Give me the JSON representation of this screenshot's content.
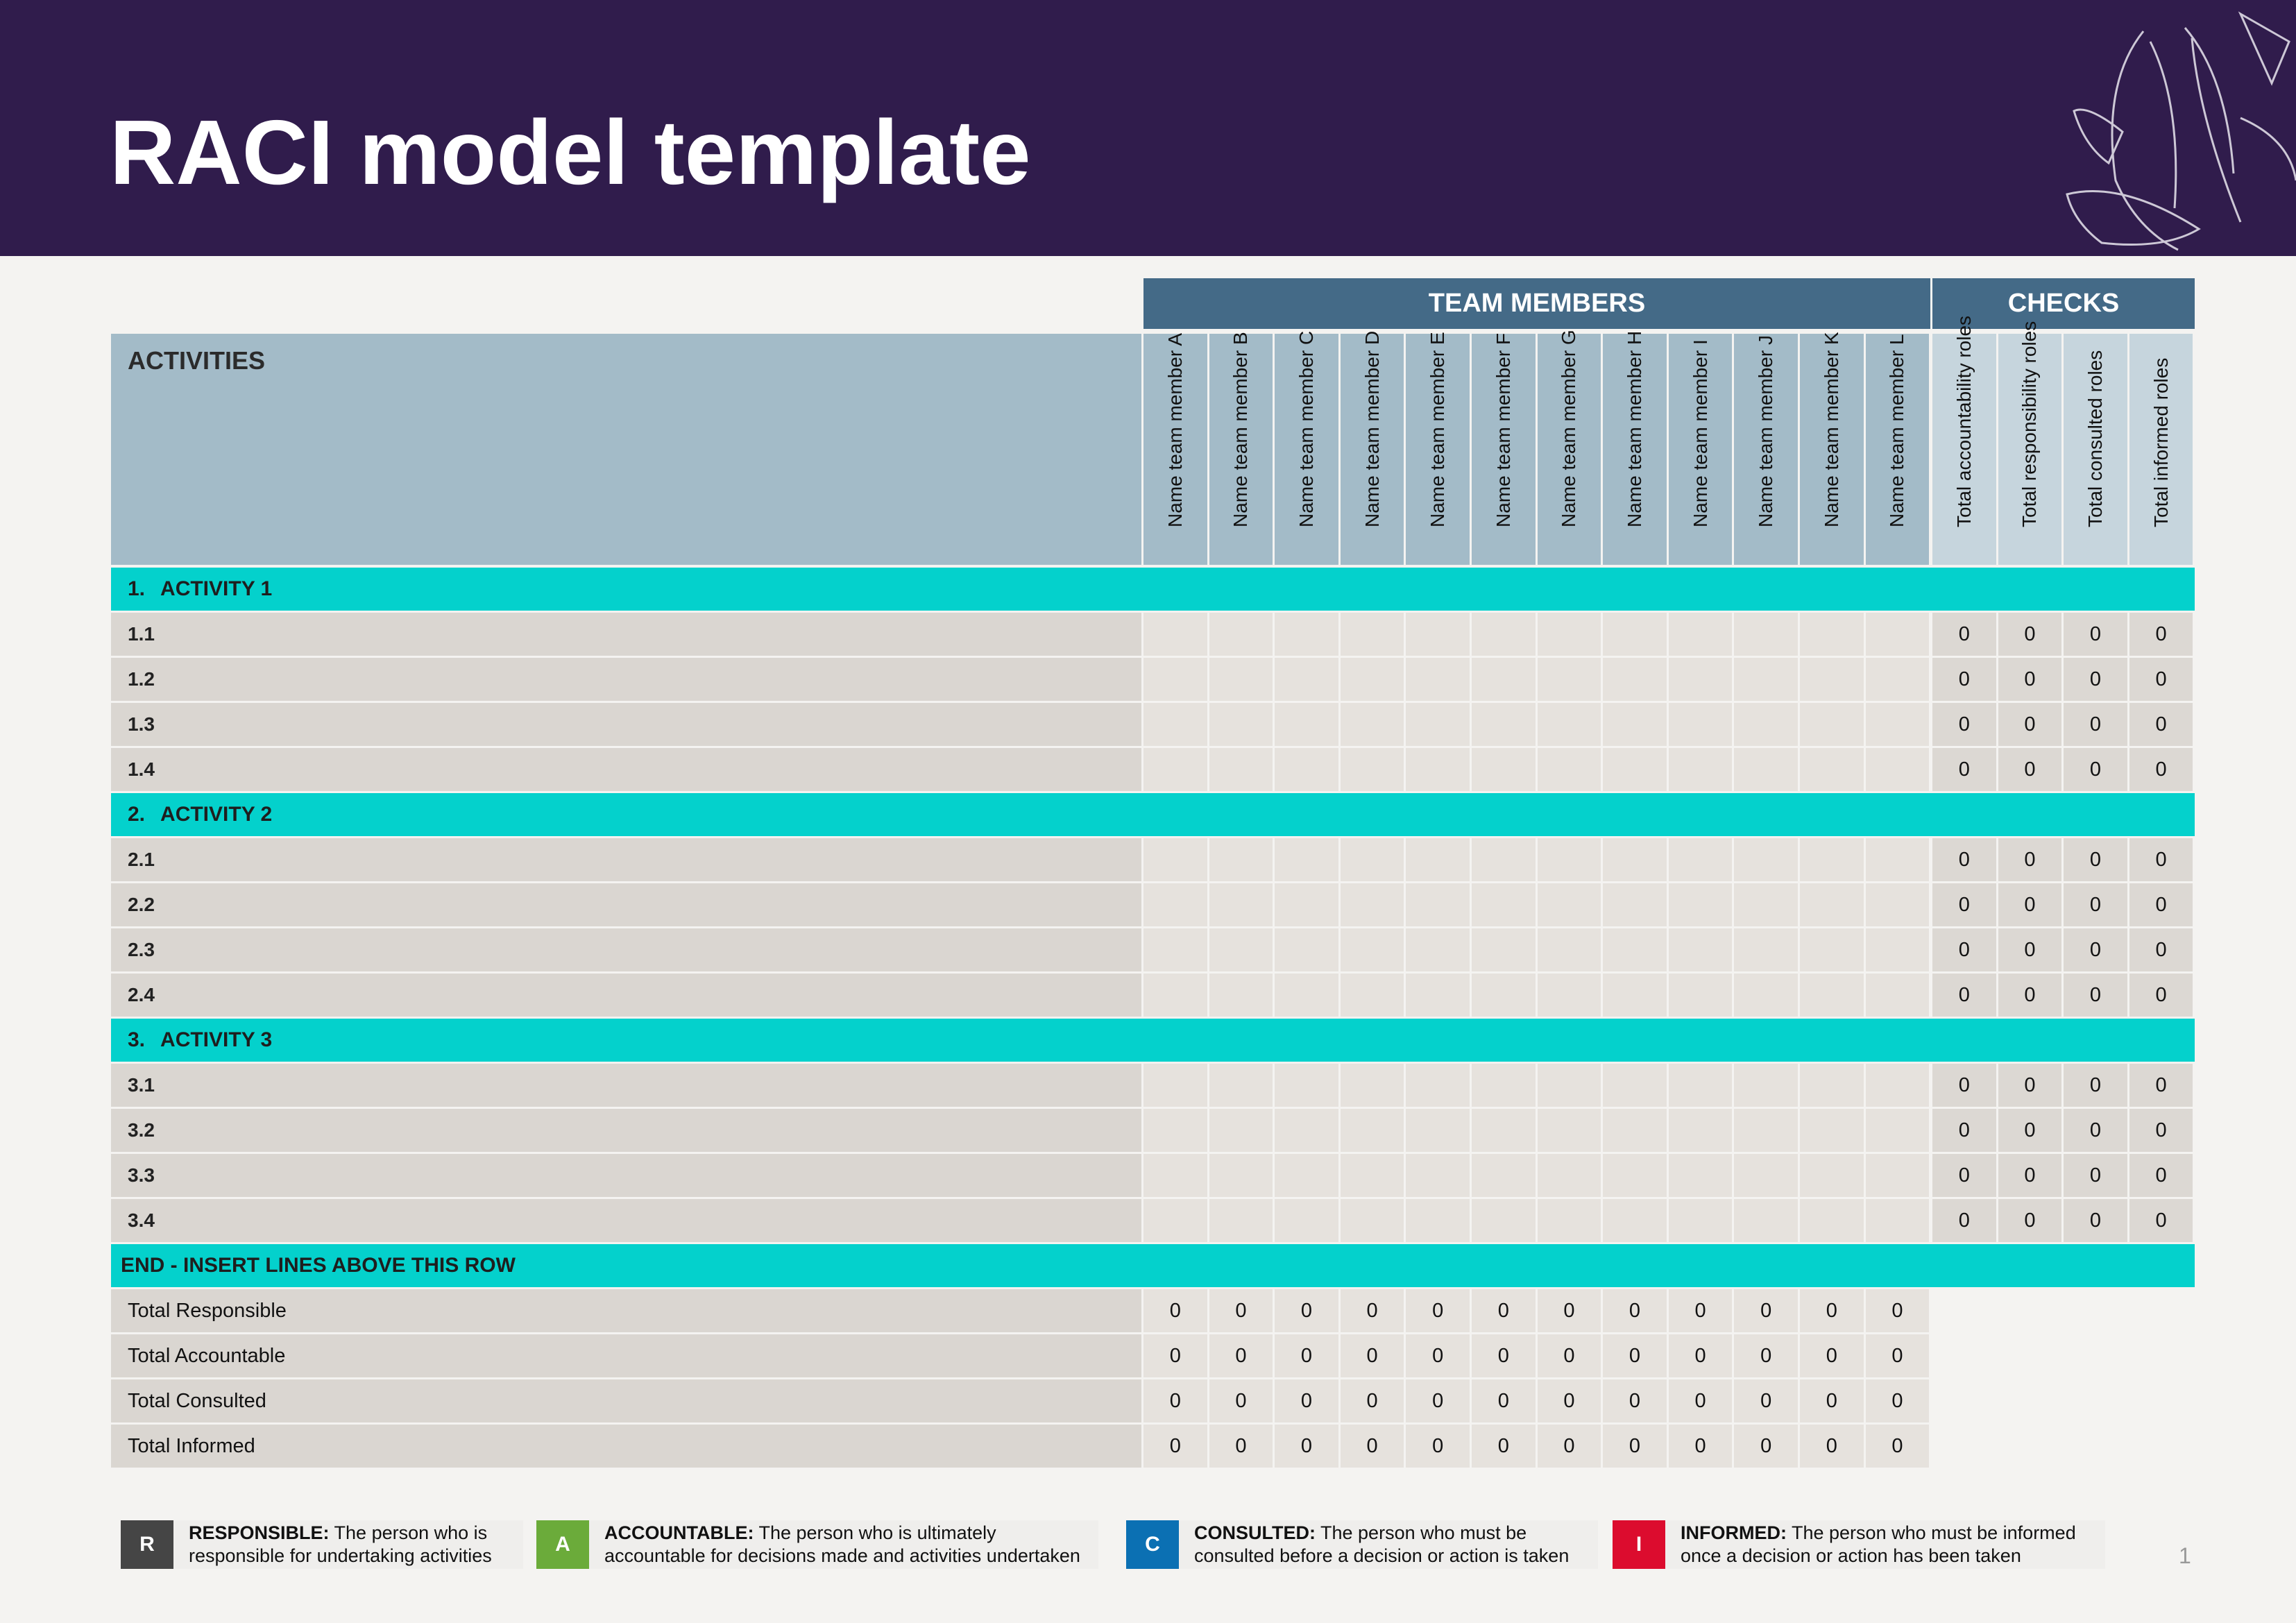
{
  "title": "RACI model template",
  "band": {
    "team": "TEAM MEMBERS",
    "checks": "CHECKS"
  },
  "activities_header": "ACTIVITIES",
  "members": [
    "Name team member A",
    "Name team member B",
    "Name team member C",
    "Name team member D",
    "Name team member E",
    "Name team member F",
    "Name team member G",
    "Name team member H",
    "Name team member I",
    "Name team member J",
    "Name team member K",
    "Name team member  L"
  ],
  "checks": [
    "Total accountability roles",
    "Total responsibility roles",
    "Total consulted roles",
    "Total informed roles"
  ],
  "sections": [
    {
      "number": "1.",
      "title": "ACTIVITY 1",
      "rows": [
        "1.1",
        "1.2",
        "1.3",
        "1.4"
      ]
    },
    {
      "number": "2.",
      "title": "ACTIVITY 2",
      "rows": [
        "2.1",
        "2.2",
        "2.3",
        "2.4"
      ]
    },
    {
      "number": "3.",
      "title": "ACTIVITY 3",
      "rows": [
        "3.1",
        "3.2",
        "3.3",
        "3.4"
      ]
    }
  ],
  "check_values": "0",
  "end_row": "END - INSERT LINES ABOVE THIS ROW",
  "totals": [
    {
      "label": "Total Responsible",
      "values": [
        "0",
        "0",
        "0",
        "0",
        "0",
        "0",
        "0",
        "0",
        "0",
        "0",
        "0",
        "0"
      ]
    },
    {
      "label": "Total Accountable",
      "values": [
        "0",
        "0",
        "0",
        "0",
        "0",
        "0",
        "0",
        "0",
        "0",
        "0",
        "0",
        "0"
      ]
    },
    {
      "label": "Total Consulted",
      "values": [
        "0",
        "0",
        "0",
        "0",
        "0",
        "0",
        "0",
        "0",
        "0",
        "0",
        "0",
        "0"
      ]
    },
    {
      "label": "Total Informed",
      "values": [
        "0",
        "0",
        "0",
        "0",
        "0",
        "0",
        "0",
        "0",
        "0",
        "0",
        "0",
        "0"
      ]
    }
  ],
  "legend": [
    {
      "letter": "R",
      "color": "#454545",
      "term": "RESPONSIBLE:",
      "line1": " The person who is",
      "line2": "responsible for undertaking activities"
    },
    {
      "letter": "A",
      "color": "#6bab3a",
      "term": "ACCOUNTABLE:",
      "line1": " The person who is ultimately",
      "line2": "accountable for decisions made and activities undertaken"
    },
    {
      "letter": "C",
      "color": "#0b70b3",
      "term": "CONSULTED:",
      "line1": " The person who must be",
      "line2": "consulted before a decision or action is taken"
    },
    {
      "letter": "I",
      "color": "#dc0c2e",
      "term": "INFORMED:",
      "line1": " The person who must be informed",
      "line2": "once a decision or action has been taken"
    }
  ],
  "page_number": "1",
  "colors": {
    "header": "#301c4c",
    "band": "#446a87",
    "activities_header": "#a3bbc8",
    "section": "#04d1cc",
    "label": "#dad6d1",
    "cell": "#e6e2dd"
  }
}
